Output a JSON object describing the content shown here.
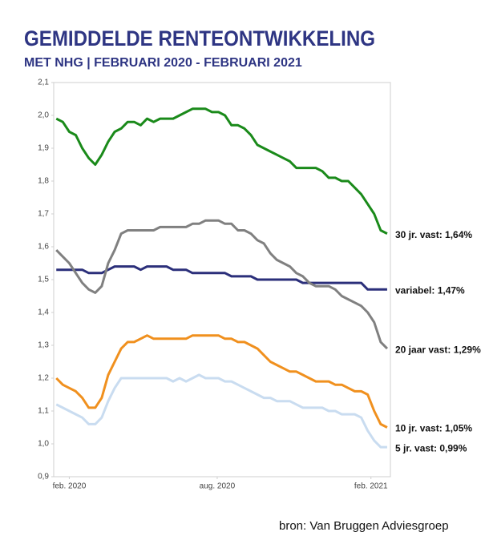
{
  "chart_data": {
    "type": "line",
    "title": "GEMIDDELDE RENTEONTWIKKELING",
    "subtitle": "MET NHG | FEBRUARI 2020 - FEBRUARI 2021",
    "source": "bron: Van Bruggen Adviesgroep",
    "x": [
      0,
      1,
      2,
      3,
      4,
      5,
      6,
      7,
      8,
      9,
      10,
      11,
      12,
      13,
      14,
      15,
      16,
      17,
      18,
      19,
      20,
      21,
      22,
      23,
      24,
      25,
      26,
      27,
      28,
      29,
      30,
      31,
      32,
      33,
      34,
      35,
      36,
      37,
      38,
      39,
      40,
      41,
      42,
      43,
      44,
      45,
      46,
      47,
      48,
      49,
      50,
      51
    ],
    "xlim": [
      -0.4,
      51.5
    ],
    "xticks": [
      {
        "value": 2,
        "label": "feb. 2020"
      },
      {
        "value": 24.8,
        "label": "aug. 2020"
      },
      {
        "value": 48.5,
        "label": "feb. 2021"
      }
    ],
    "ylim": [
      0.9,
      2.1
    ],
    "yticks": [
      {
        "value": 0.9,
        "label": "0,9"
      },
      {
        "value": 1.0,
        "label": "1,0"
      },
      {
        "value": 1.1,
        "label": "1,1"
      },
      {
        "value": 1.2,
        "label": "1,2"
      },
      {
        "value": 1.3,
        "label": "1,3"
      },
      {
        "value": 1.4,
        "label": "1,4"
      },
      {
        "value": 1.5,
        "label": "1,5"
      },
      {
        "value": 1.6,
        "label": "1,6"
      },
      {
        "value": 1.7,
        "label": "1,7"
      },
      {
        "value": 1.8,
        "label": "1,8"
      },
      {
        "value": 1.9,
        "label": "1,9"
      },
      {
        "value": 2.0,
        "label": "2,0"
      },
      {
        "value": 2.1,
        "label": "2,1"
      }
    ],
    "grid": false,
    "series": [
      {
        "name": "30 jr. vast: 1,64%",
        "color": "#1a8a1a",
        "values": [
          1.99,
          1.98,
          1.95,
          1.94,
          1.9,
          1.87,
          1.85,
          1.88,
          1.92,
          1.95,
          1.96,
          1.98,
          1.98,
          1.97,
          1.99,
          1.98,
          1.99,
          1.99,
          1.99,
          2.0,
          2.01,
          2.02,
          2.02,
          2.02,
          2.01,
          2.01,
          2.0,
          1.97,
          1.97,
          1.96,
          1.94,
          1.91,
          1.9,
          1.89,
          1.88,
          1.87,
          1.86,
          1.84,
          1.84,
          1.84,
          1.84,
          1.83,
          1.81,
          1.81,
          1.8,
          1.8,
          1.78,
          1.76,
          1.73,
          1.7,
          1.65,
          1.64
        ]
      },
      {
        "name": "variabel: 1,47%",
        "color": "#2b2f7a",
        "values": [
          1.53,
          1.53,
          1.53,
          1.53,
          1.53,
          1.52,
          1.52,
          1.52,
          1.53,
          1.54,
          1.54,
          1.54,
          1.54,
          1.53,
          1.54,
          1.54,
          1.54,
          1.54,
          1.53,
          1.53,
          1.53,
          1.52,
          1.52,
          1.52,
          1.52,
          1.52,
          1.52,
          1.51,
          1.51,
          1.51,
          1.51,
          1.5,
          1.5,
          1.5,
          1.5,
          1.5,
          1.5,
          1.5,
          1.49,
          1.49,
          1.49,
          1.49,
          1.49,
          1.49,
          1.49,
          1.49,
          1.49,
          1.49,
          1.47,
          1.47,
          1.47,
          1.47
        ]
      },
      {
        "name": "20 jaar vast: 1,29%",
        "color": "#808080",
        "values": [
          1.59,
          1.57,
          1.55,
          1.52,
          1.49,
          1.47,
          1.46,
          1.48,
          1.55,
          1.59,
          1.64,
          1.65,
          1.65,
          1.65,
          1.65,
          1.65,
          1.66,
          1.66,
          1.66,
          1.66,
          1.66,
          1.67,
          1.67,
          1.68,
          1.68,
          1.68,
          1.67,
          1.67,
          1.65,
          1.65,
          1.64,
          1.62,
          1.61,
          1.58,
          1.56,
          1.55,
          1.54,
          1.52,
          1.51,
          1.49,
          1.48,
          1.48,
          1.48,
          1.47,
          1.45,
          1.44,
          1.43,
          1.42,
          1.4,
          1.37,
          1.31,
          1.29
        ]
      },
      {
        "name": "10 jr. vast: 1,05%",
        "color": "#f0901e",
        "values": [
          1.2,
          1.18,
          1.17,
          1.16,
          1.14,
          1.11,
          1.11,
          1.14,
          1.21,
          1.25,
          1.29,
          1.31,
          1.31,
          1.32,
          1.33,
          1.32,
          1.32,
          1.32,
          1.32,
          1.32,
          1.32,
          1.33,
          1.33,
          1.33,
          1.33,
          1.33,
          1.32,
          1.32,
          1.31,
          1.31,
          1.3,
          1.29,
          1.27,
          1.25,
          1.24,
          1.23,
          1.22,
          1.22,
          1.21,
          1.2,
          1.19,
          1.19,
          1.19,
          1.18,
          1.18,
          1.17,
          1.16,
          1.16,
          1.15,
          1.1,
          1.06,
          1.05
        ]
      },
      {
        "name": "5 jr. vast: 0,99%",
        "color": "#c9dcf0",
        "values": [
          1.12,
          1.11,
          1.1,
          1.09,
          1.08,
          1.06,
          1.06,
          1.08,
          1.13,
          1.17,
          1.2,
          1.2,
          1.2,
          1.2,
          1.2,
          1.2,
          1.2,
          1.2,
          1.19,
          1.2,
          1.19,
          1.2,
          1.21,
          1.2,
          1.2,
          1.2,
          1.19,
          1.19,
          1.18,
          1.17,
          1.16,
          1.15,
          1.14,
          1.14,
          1.13,
          1.13,
          1.13,
          1.12,
          1.11,
          1.11,
          1.11,
          1.11,
          1.1,
          1.1,
          1.09,
          1.09,
          1.09,
          1.08,
          1.04,
          1.01,
          0.99,
          0.99
        ]
      }
    ]
  }
}
